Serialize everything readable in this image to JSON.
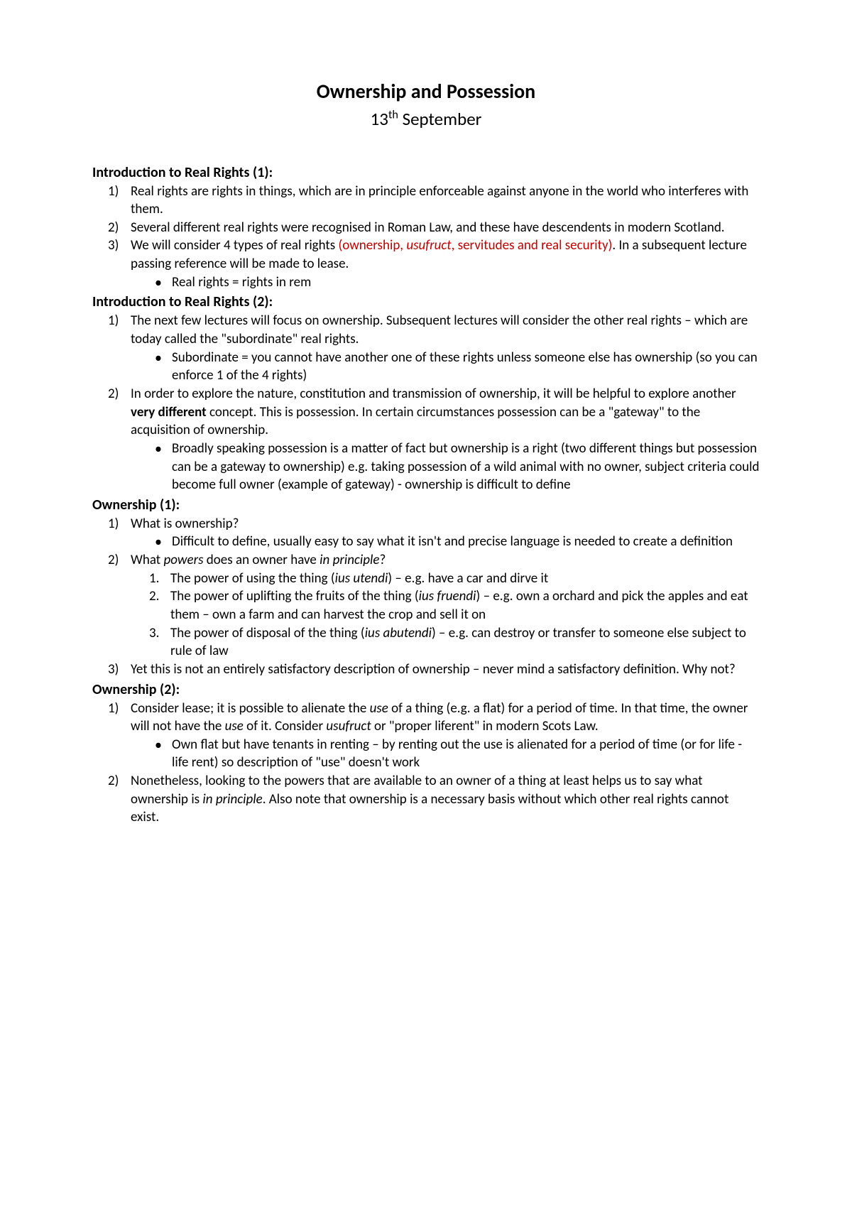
{
  "title": "Ownership and Possession",
  "subtitle_day": "13",
  "subtitle_sup": "th",
  "subtitle_month": " September",
  "colors": {
    "text": "#000000",
    "highlight": "#c00000",
    "background": "#ffffff"
  },
  "sections": {
    "intro1": {
      "heading": "Introduction to Real Rights (1):",
      "items": [
        {
          "n": "1)",
          "text": "Real rights are rights in things, which are in principle enforceable against anyone in the world who interferes with them."
        },
        {
          "n": "2)",
          "text": "Several different real rights were recognised in Roman Law, and these have descendents in modern Scotland."
        },
        {
          "n": "3)",
          "pre": "We will consider 4 types of real rights ",
          "red1": "(ownership, ",
          "red_italic": "usufruct",
          "red2": ", servitudes and real security)",
          "post": ". In a subsequent lecture passing reference will be made to lease.",
          "bullets": [
            "Real rights = rights in rem"
          ]
        }
      ]
    },
    "intro2": {
      "heading": "Introduction to Real Rights (2):",
      "items": [
        {
          "n": "1)",
          "text": "The next few lectures will focus on ownership. Subsequent lectures will consider the other real rights – which are today called the \"subordinate\" real rights.",
          "bullets": [
            "Subordinate = you cannot have another one of these rights unless someone else has ownership (so you can enforce 1 of the 4 rights)"
          ]
        },
        {
          "n": "2)",
          "pre": "In order to explore the nature, constitution and transmission of ownership, it will be helpful to explore another ",
          "bold": "very different",
          "post": " concept. This is possession. In certain circumstances possession can be a \"gateway\" to the acquisition of ownership.",
          "bullets": [
            "Broadly speaking possession is a matter of fact but ownership is a right (two different things but possession can be a gateway to ownership) e.g. taking possession of a wild animal with no owner, subject criteria could become full owner (example of gateway) - ownership is difficult to define"
          ]
        }
      ]
    },
    "own1": {
      "heading": "Ownership (1):",
      "items": [
        {
          "n": "1)",
          "text": "What is ownership?",
          "bullets": [
            "Difficult to define, usually easy to say what it isn't and precise language is needed to create a definition"
          ]
        },
        {
          "n": "2)",
          "pre": "What ",
          "italic1": "powers",
          "mid": " does an owner have ",
          "italic2": "in principle",
          "post": "?",
          "subnum": [
            {
              "sn": "1.",
              "pre": "The power of using the thing (",
              "italic": "ius utendi",
              "post": ") – e.g. have a car and dirve it"
            },
            {
              "sn": "2.",
              "pre": "The power of uplifting the fruits of the thing (",
              "italic": "ius fruendi",
              "post": ") – e.g. own a orchard and pick the apples and eat them – own a farm and can harvest the crop and sell it on"
            },
            {
              "sn": "3.",
              "pre": "The power of disposal of the thing (",
              "italic": "ius abutendi",
              "post": ") – e.g. can destroy or transfer to someone else subject to rule of law"
            }
          ]
        },
        {
          "n": "3)",
          "text": "Yet this is not an entirely satisfactory description of ownership – never mind a satisfactory definition. Why not?"
        }
      ]
    },
    "own2": {
      "heading": "Ownership (2):",
      "items": [
        {
          "n": "1)",
          "pre": "Consider lease; it is possible to alienate the ",
          "i1": "use",
          "m1": " of a thing (e.g. a flat) for a period of time. In that time, the owner will not have the ",
          "i2": "use",
          "m2": " of it. Consider ",
          "i3": "usufruct",
          "post": " or \"proper liferent\" in modern Scots Law.",
          "bullets": [
            "Own flat but have tenants in renting – by renting out the use is alienated for a period of time (or for life - life rent) so description of \"use\" doesn't work"
          ]
        },
        {
          "n": "2)",
          "pre": "Nonetheless, looking to the powers that are available to an owner of a thing at least helps us to say what ownership is ",
          "italic": "in principle",
          "post": ". Also note that ownership is a necessary basis without which other real rights cannot exist."
        }
      ]
    }
  }
}
